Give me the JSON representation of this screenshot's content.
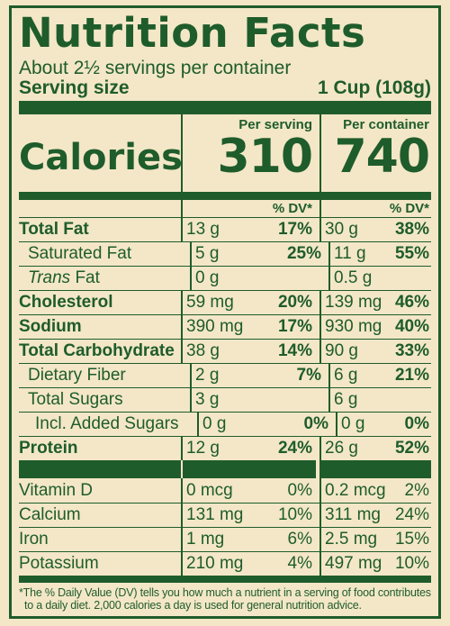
{
  "title": "Nutrition Facts",
  "servings_per_container": "About 2½ servings per container",
  "serving_size": {
    "label": "Serving size",
    "value": "1 Cup (108g)"
  },
  "calories": {
    "label": "Calories",
    "per_serving_label": "Per serving",
    "per_container_label": "Per container",
    "per_serving": "310",
    "per_container": "740"
  },
  "dv_header": "% DV*",
  "nutrients": [
    {
      "label": "Total Fat",
      "bold": true,
      "indent": 0,
      "s_amt": "13 g",
      "s_dv": "17%",
      "c_amt": "30 g",
      "c_dv": "38%"
    },
    {
      "label": "Saturated Fat",
      "bold": false,
      "indent": 1,
      "s_amt": "5 g",
      "s_dv": "25%",
      "c_amt": "11 g",
      "c_dv": "55%"
    },
    {
      "label": "Fat",
      "prefix_italic": "Trans",
      "bold": false,
      "indent": 1,
      "s_amt": "0 g",
      "s_dv": "",
      "c_amt": "0.5 g",
      "c_dv": ""
    },
    {
      "label": "Cholesterol",
      "bold": true,
      "indent": 0,
      "s_amt": "59 mg",
      "s_dv": "20%",
      "c_amt": "139 mg",
      "c_dv": "46%"
    },
    {
      "label": "Sodium",
      "bold": true,
      "indent": 0,
      "s_amt": "390 mg",
      "s_dv": "17%",
      "c_amt": "930 mg",
      "c_dv": "40%"
    },
    {
      "label": "Total Carbohydrate",
      "bold": true,
      "indent": 0,
      "s_amt": "38 g",
      "s_dv": "14%",
      "c_amt": "90 g",
      "c_dv": "33%"
    },
    {
      "label": "Dietary Fiber",
      "bold": false,
      "indent": 1,
      "s_amt": "2 g",
      "s_dv": "7%",
      "c_amt": "6 g",
      "c_dv": "21%"
    },
    {
      "label": "Total Sugars",
      "bold": false,
      "indent": 1,
      "s_amt": "3 g",
      "s_dv": "",
      "c_amt": "6 g",
      "c_dv": ""
    },
    {
      "label": "Incl. Added Sugars",
      "bold": false,
      "indent": 2,
      "s_amt": "0 g",
      "s_dv": "0%",
      "c_amt": "0 g",
      "c_dv": "0%"
    },
    {
      "label": "Protein",
      "bold": true,
      "indent": 0,
      "s_amt": "12 g",
      "s_dv": "24%",
      "c_amt": "26 g",
      "c_dv": "52%"
    }
  ],
  "vitamins": [
    {
      "label": "Vitamin D",
      "s_amt": "0 mcg",
      "s_dv": "0%",
      "c_amt": "0.2 mcg",
      "c_dv": "2%"
    },
    {
      "label": "Calcium",
      "s_amt": "131 mg",
      "s_dv": "10%",
      "c_amt": "311 mg",
      "c_dv": "24%"
    },
    {
      "label": "Iron",
      "s_amt": "1 mg",
      "s_dv": "6%",
      "c_amt": "2.5 mg",
      "c_dv": "15%"
    },
    {
      "label": "Potassium",
      "s_amt": "210 mg",
      "s_dv": "4%",
      "c_amt": "497 mg",
      "c_dv": "10%"
    }
  ],
  "footnote": {
    "line1": "*The % Daily Value (DV) tells you how much a nutrient in a serving of food contributes",
    "line2": "to a daily diet. 2,000 calories a day is used for general nutrition advice."
  },
  "colors": {
    "ink": "#1f5c2b",
    "background": "#f3e7c7"
  }
}
